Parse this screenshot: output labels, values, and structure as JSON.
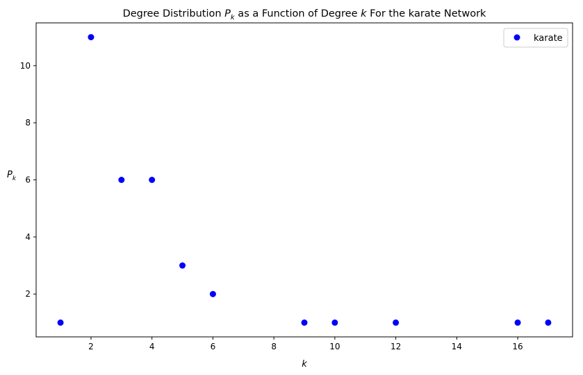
{
  "chart_data": {
    "type": "scatter",
    "title": "Degree Distribution P_k as a Function of Degree k For the karate Network",
    "title_parts": {
      "pre": "Degree Distribution ",
      "p": "P",
      "p_sub": "k",
      "mid": " as a Function of Degree ",
      "k": "k",
      "post": " For the karate Network"
    },
    "xlabel": "k",
    "ylabel": {
      "main": "P",
      "sub": "k"
    },
    "xlim": [
      0.2,
      17.8
    ],
    "ylim": [
      0.5,
      11.5
    ],
    "xticks": [
      2,
      4,
      6,
      8,
      10,
      12,
      14,
      16
    ],
    "yticks": [
      2,
      4,
      6,
      8,
      10
    ],
    "grid": false,
    "legend_position": "top-right",
    "series": [
      {
        "name": "karate",
        "color": "#0000ff",
        "marker": "circle",
        "x": [
          1,
          2,
          3,
          4,
          5,
          6,
          9,
          10,
          12,
          16,
          17
        ],
        "y": [
          1,
          11,
          6,
          6,
          3,
          2,
          1,
          1,
          1,
          1,
          1
        ]
      }
    ]
  }
}
